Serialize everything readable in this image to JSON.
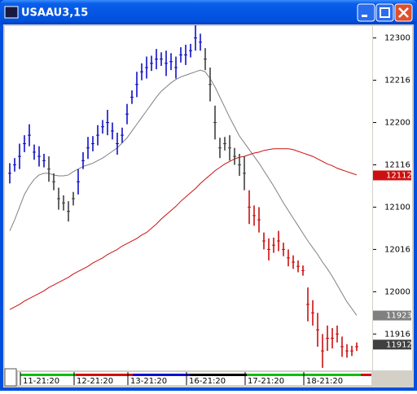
{
  "window": {
    "title": "USAAU3,15"
  },
  "chart_data": {
    "type": "ohlc",
    "categories": [
      null,
      null,
      null,
      "11-21:20",
      null,
      null,
      null,
      null,
      null,
      null,
      null,
      null,
      null,
      null,
      "12-21:20",
      null,
      null,
      null,
      null,
      null,
      null,
      null,
      null,
      null,
      null,
      "13-21:20",
      null,
      null,
      null,
      null,
      null,
      null,
      null,
      null,
      null,
      null,
      null,
      "16-21:20",
      null,
      null,
      null,
      null,
      null,
      null,
      null,
      null,
      null,
      null,
      null,
      "17-21:20",
      null,
      null,
      null,
      null,
      null,
      null,
      null,
      null,
      null,
      null,
      null,
      "18-21:20",
      null,
      null,
      null,
      null,
      null,
      null,
      null,
      null,
      null,
      null
    ],
    "bars": {
      "high": [
        121.52,
        121.58,
        121.75,
        121.85,
        121.98,
        121.74,
        121.72,
        121.63,
        121.6,
        121.4,
        121.23,
        121.14,
        121.07,
        121.18,
        121.45,
        121.65,
        121.83,
        121.84,
        121.97,
        122.03,
        122.15,
        122.0,
        121.88,
        121.94,
        122.22,
        122.38,
        122.6,
        122.7,
        122.78,
        122.79,
        122.87,
        122.83,
        122.85,
        122.82,
        122.78,
        122.89,
        122.92,
        122.93,
        123.15,
        123.05,
        122.88,
        122.65,
        122.2,
        121.82,
        121.83,
        121.85,
        121.7,
        121.63,
        121.6,
        121.2,
        121.02,
        121.0,
        120.7,
        120.63,
        120.64,
        120.72,
        120.58,
        120.5,
        120.43,
        120.37,
        120.31,
        120.05,
        119.9,
        119.75,
        119.5,
        119.6,
        119.57,
        119.6,
        119.47,
        119.38,
        119.36,
        119.4
      ],
      "low": [
        121.28,
        121.42,
        121.45,
        121.65,
        121.72,
        121.56,
        121.48,
        121.47,
        121.3,
        121.2,
        120.97,
        120.96,
        120.83,
        121.02,
        121.15,
        121.45,
        121.57,
        121.66,
        121.73,
        121.87,
        121.85,
        121.8,
        121.62,
        121.76,
        121.98,
        122.22,
        122.3,
        122.5,
        122.52,
        122.61,
        122.63,
        122.67,
        122.55,
        122.62,
        122.52,
        122.71,
        122.68,
        122.77,
        122.85,
        122.85,
        122.62,
        122.25,
        121.8,
        121.58,
        121.67,
        121.55,
        121.5,
        121.37,
        121.2,
        120.8,
        120.78,
        120.7,
        120.5,
        120.37,
        120.46,
        120.48,
        120.42,
        120.3,
        120.27,
        120.23,
        120.19,
        119.65,
        119.6,
        119.35,
        119.1,
        119.3,
        119.33,
        119.4,
        119.23,
        119.22,
        119.24,
        119.3
      ],
      "colors": [
        "#1010c8",
        "#1010c8",
        "#1010c8",
        "#1010c8",
        "#1010c8",
        "#1010c8",
        "#1010c8",
        "#1010c8",
        "#404040",
        "#404040",
        "#404040",
        "#404040",
        "#404040",
        "#404040",
        "#1010c8",
        "#1010c8",
        "#1010c8",
        "#1010c8",
        "#1010c8",
        "#1010c8",
        "#1010c8",
        "#1010c8",
        "#1010c8",
        "#1010c8",
        "#1010c8",
        "#1010c8",
        "#1010c8",
        "#1010c8",
        "#1010c8",
        "#1010c8",
        "#1010c8",
        "#1010c8",
        "#1010c8",
        "#1010c8",
        "#1010c8",
        "#1010c8",
        "#1010c8",
        "#1010c8",
        "#1010c8",
        "#1010c8",
        "#404040",
        "#404040",
        "#404040",
        "#404040",
        "#404040",
        "#404040",
        "#404040",
        "#404040",
        "#404040",
        "#cc1010",
        "#cc1010",
        "#cc1010",
        "#cc1010",
        "#cc1010",
        "#cc1010",
        "#cc1010",
        "#cc1010",
        "#cc1010",
        "#cc1010",
        "#cc1010",
        "#cc1010",
        "#cc1010",
        "#cc1010",
        "#cc1010",
        "#cc1010",
        "#cc1010",
        "#cc1010",
        "#cc1010",
        "#cc1010",
        "#cc1010",
        "#cc1010",
        "#cc1010"
      ]
    },
    "series": [
      {
        "color": "#808080",
        "values": [
          120.72,
          120.85,
          121.0,
          121.15,
          121.25,
          121.33,
          121.38,
          121.4,
          121.4,
          121.38,
          121.37,
          121.37,
          121.38,
          121.42,
          121.45,
          121.48,
          121.5,
          121.52,
          121.55,
          121.58,
          121.62,
          121.66,
          121.7,
          121.76,
          121.82,
          121.9,
          121.98,
          122.06,
          122.14,
          122.22,
          122.3,
          122.37,
          122.42,
          122.47,
          122.51,
          122.54,
          122.56,
          122.58,
          122.6,
          122.62,
          122.6,
          122.52,
          122.42,
          122.3,
          122.18,
          122.06,
          121.95,
          121.84,
          121.76,
          121.68,
          121.6,
          121.52,
          121.43,
          121.34,
          121.25,
          121.15,
          121.05,
          120.96,
          120.87,
          120.78,
          120.69,
          120.6,
          120.52,
          120.44,
          120.35,
          120.27,
          120.18,
          120.08,
          119.98,
          119.88,
          119.8,
          119.72
        ]
      },
      {
        "color": "#cc1010",
        "values": [
          119.79,
          119.82,
          119.85,
          119.89,
          119.92,
          119.95,
          119.98,
          120.01,
          120.05,
          120.08,
          120.11,
          120.14,
          120.17,
          120.21,
          120.24,
          120.27,
          120.3,
          120.34,
          120.37,
          120.4,
          120.44,
          120.47,
          120.5,
          120.54,
          120.57,
          120.6,
          120.63,
          120.67,
          120.7,
          120.75,
          120.8,
          120.86,
          120.91,
          120.96,
          121.01,
          121.07,
          121.12,
          121.17,
          121.22,
          121.28,
          121.33,
          121.38,
          121.43,
          121.47,
          121.51,
          121.54,
          121.57,
          121.59,
          121.6,
          121.62,
          121.64,
          121.65,
          121.67,
          121.68,
          121.69,
          121.69,
          121.69,
          121.69,
          121.68,
          121.66,
          121.64,
          121.62,
          121.6,
          121.57,
          121.54,
          121.51,
          121.49,
          121.46,
          121.44,
          121.42,
          121.4,
          121.38
        ]
      }
    ],
    "ylim": [
      119.07,
      123.16
    ],
    "yticks": [
      {
        "value": 123,
        "label": "12300"
      },
      {
        "value": 122.5,
        "label": "12216"
      },
      {
        "value": 122,
        "label": "12200"
      },
      {
        "value": 121.5,
        "label": "12116"
      },
      {
        "value": 121,
        "label": "12100"
      },
      {
        "value": 120.5,
        "label": "12016"
      },
      {
        "value": 120,
        "label": "12000"
      },
      {
        "value": 119.5,
        "label": "11916"
      }
    ],
    "price_tags": [
      {
        "value": 121.375,
        "label": "12112",
        "color": "#cc1010"
      },
      {
        "value": 119.71875,
        "label": "11923",
        "color": "#808080"
      },
      {
        "value": 119.375,
        "label": "11912",
        "color": "#404040"
      }
    ]
  }
}
